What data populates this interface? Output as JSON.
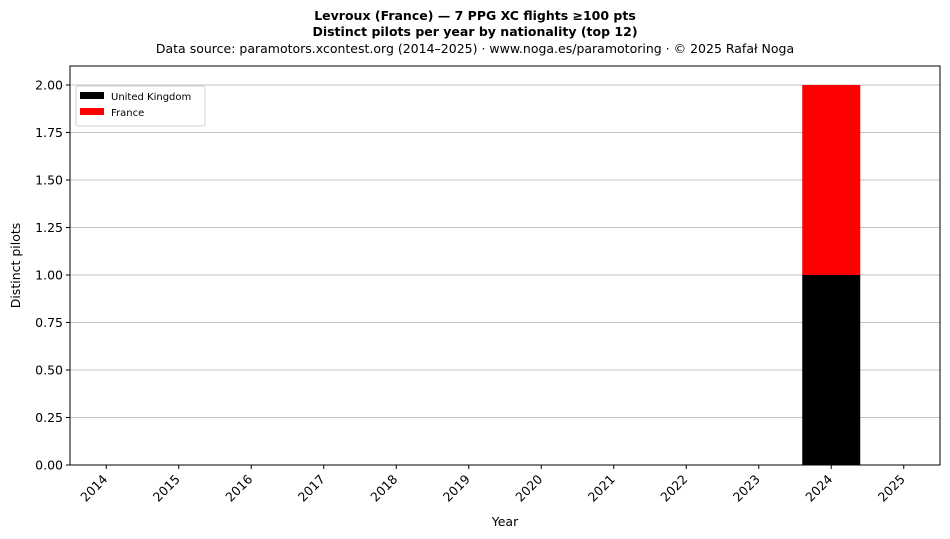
{
  "chart_data": {
    "type": "bar",
    "stacked": true,
    "title": "Levroux (France)  —  7 PPG XC flights ≥100 pts",
    "subtitle": "Distinct pilots per year by nationality (top 12)",
    "source": "Data source: paramotors.xcontest.org (2014–2025)  ·  www.noga.es/paramotoring  ·  © 2025 Rafał Noga",
    "xlabel": "Year",
    "ylabel": "Distinct pilots",
    "categories": [
      "2014",
      "2015",
      "2016",
      "2017",
      "2018",
      "2019",
      "2020",
      "2021",
      "2022",
      "2023",
      "2024",
      "2025"
    ],
    "series": [
      {
        "name": "United Kingdom",
        "color": "#000000",
        "values": [
          0,
          0,
          0,
          0,
          0,
          0,
          0,
          0,
          0,
          0,
          1,
          0
        ]
      },
      {
        "name": "France",
        "color": "#ff0000",
        "values": [
          0,
          0,
          0,
          0,
          0,
          0,
          0,
          0,
          0,
          0,
          1,
          0
        ]
      }
    ],
    "ylim": [
      0,
      2.1
    ],
    "yticks": [
      "0.00",
      "0.25",
      "0.50",
      "0.75",
      "1.00",
      "1.25",
      "1.50",
      "1.75",
      "2.00"
    ],
    "grid": "y",
    "legend_position": "top-left"
  }
}
